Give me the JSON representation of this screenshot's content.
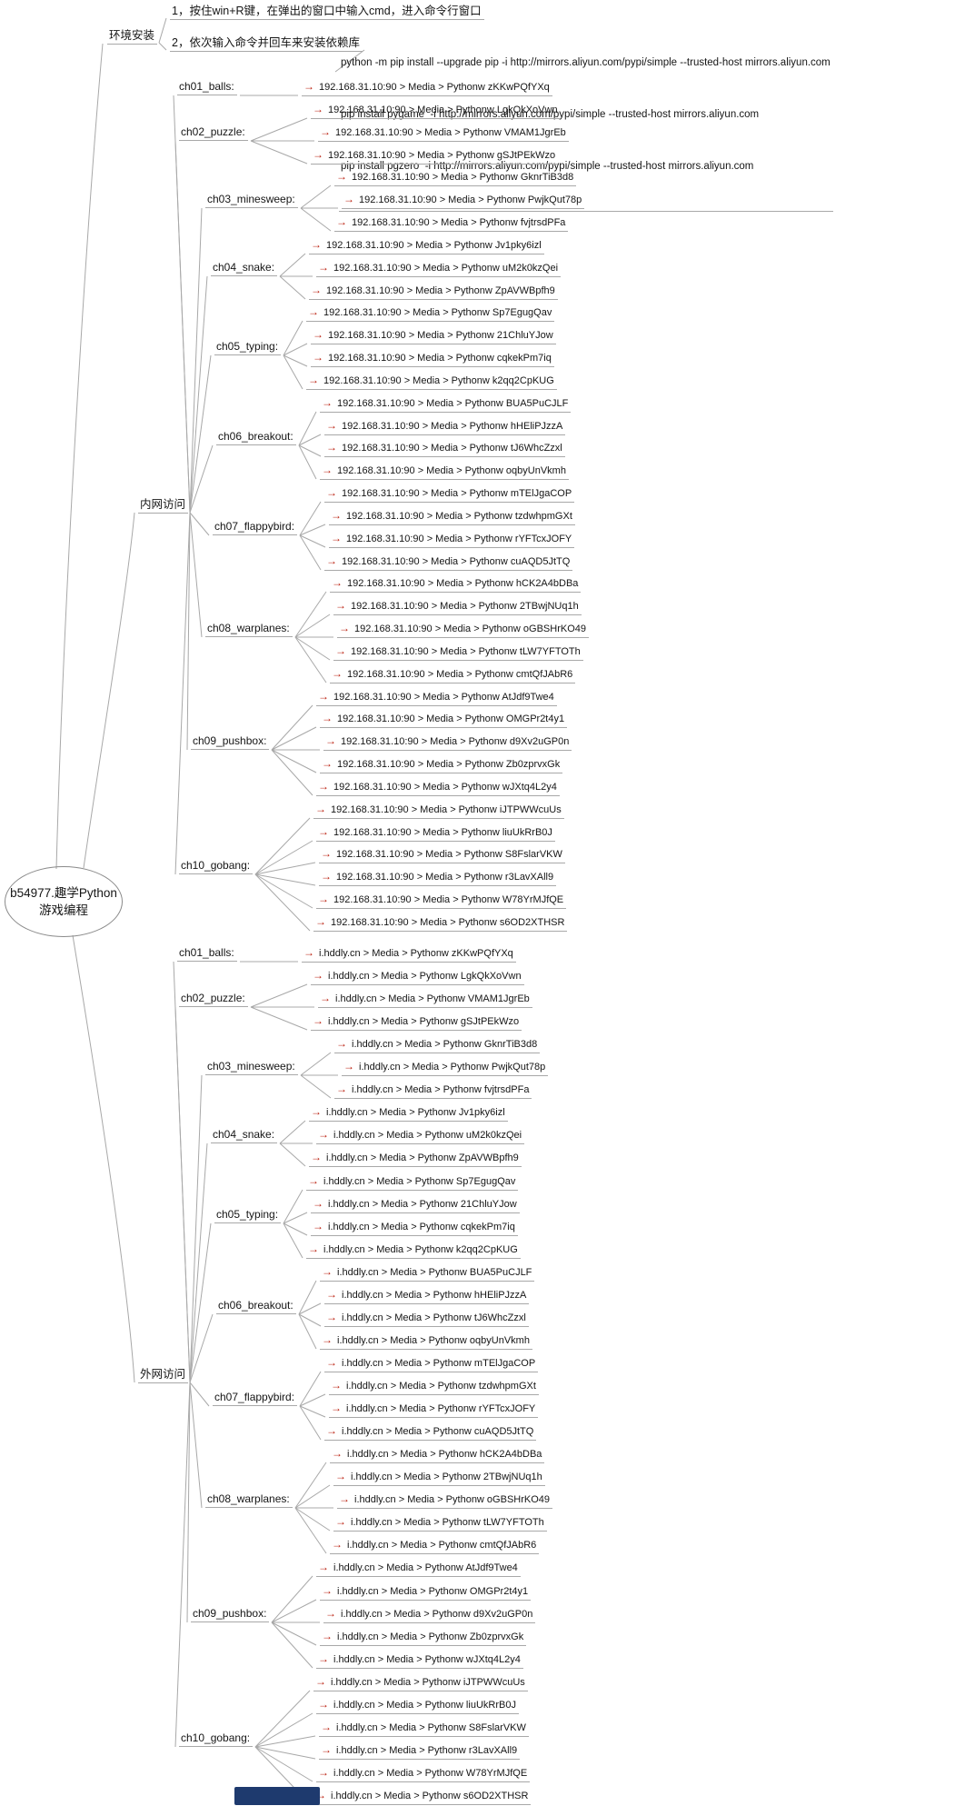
{
  "root": {
    "line1": "b54977.趣学Python",
    "line2": "游戏编程"
  },
  "env": {
    "label": "环境安装",
    "step1": "1，按住win+R键，在弹出的窗口中输入cmd，进入命令行窗口",
    "step2": "2，依次输入命令并回车来安装依赖库",
    "commands": [
      "python -m pip install --upgrade pip -i http://mirrors.aliyun.com/pypi/simple --trusted-host mirrors.aliyun.com",
      "pip install pygame  -i http://mirrors.aliyun.com/pypi/simple --trusted-host mirrors.aliyun.com",
      "pip install pgzero  -i http://mirrors.aliyun.com/pypi/simple --trusted-host mirrors.aliyun.com"
    ]
  },
  "leaf_format": "{host} > Media > Pythonw {code}",
  "sections": [
    {
      "id": "intranet",
      "label": "内网访问",
      "host": "192.168.31.10:90"
    },
    {
      "id": "internet",
      "label": "外网访问",
      "host": "i.hddly.cn"
    }
  ],
  "chapters": [
    {
      "label": "ch01_balls:",
      "codes": [
        "zKKwPQfYXq"
      ]
    },
    {
      "label": "ch02_puzzle:",
      "codes": [
        "LgkQkXoVwn",
        "VMAM1JgrEb",
        "gSJtPEkWzo"
      ]
    },
    {
      "label": "ch03_minesweep:",
      "codes": [
        "GknrTiB3d8",
        "PwjkQut78p",
        "fvjtrsdPFa"
      ]
    },
    {
      "label": "ch04_snake:",
      "codes": [
        "Jv1pky6izl",
        "uM2k0kzQei",
        "ZpAVWBpfh9"
      ]
    },
    {
      "label": "ch05_typing:",
      "codes": [
        "Sp7EgugQav",
        "21ChluYJow",
        "cqkekPm7iq",
        "k2qq2CpKUG"
      ]
    },
    {
      "label": "ch06_breakout:",
      "codes": [
        "BUA5PuCJLF",
        "hHEliPJzzA",
        "tJ6WhcZzxl",
        "oqbyUnVkmh"
      ]
    },
    {
      "label": "ch07_flappybird:",
      "codes": [
        "mTElJgaCOP",
        "tzdwhpmGXt",
        "rYFTcxJOFY",
        "cuAQD5JtTQ"
      ]
    },
    {
      "label": "ch08_warplanes:",
      "codes": [
        "hCK2A4bDBa",
        "2TBwjNUq1h",
        "oGBSHrKO49",
        "tLW7YFTOTh",
        "cmtQfJAbR6"
      ]
    },
    {
      "label": "ch09_pushbox:",
      "codes": [
        "AtJdf9Twe4",
        "OMGPr2t4y1",
        "d9Xv2uGP0n",
        "Zb0zprvxGk",
        "wJXtq4L2y4"
      ]
    },
    {
      "label": "ch10_gobang:",
      "codes": [
        "iJTPWWcuUs",
        "liuUkRrB0J",
        "S8FslarVKW",
        "r3LavXAll9",
        "W78YrMJfQE",
        "s6OD2XTHSR"
      ]
    }
  ],
  "colors": {
    "arrow": "#bb2010",
    "edge": "#a8a8a8",
    "text": "#151515",
    "highlight_box": "#1e3a6e",
    "background": "#ffffff"
  }
}
